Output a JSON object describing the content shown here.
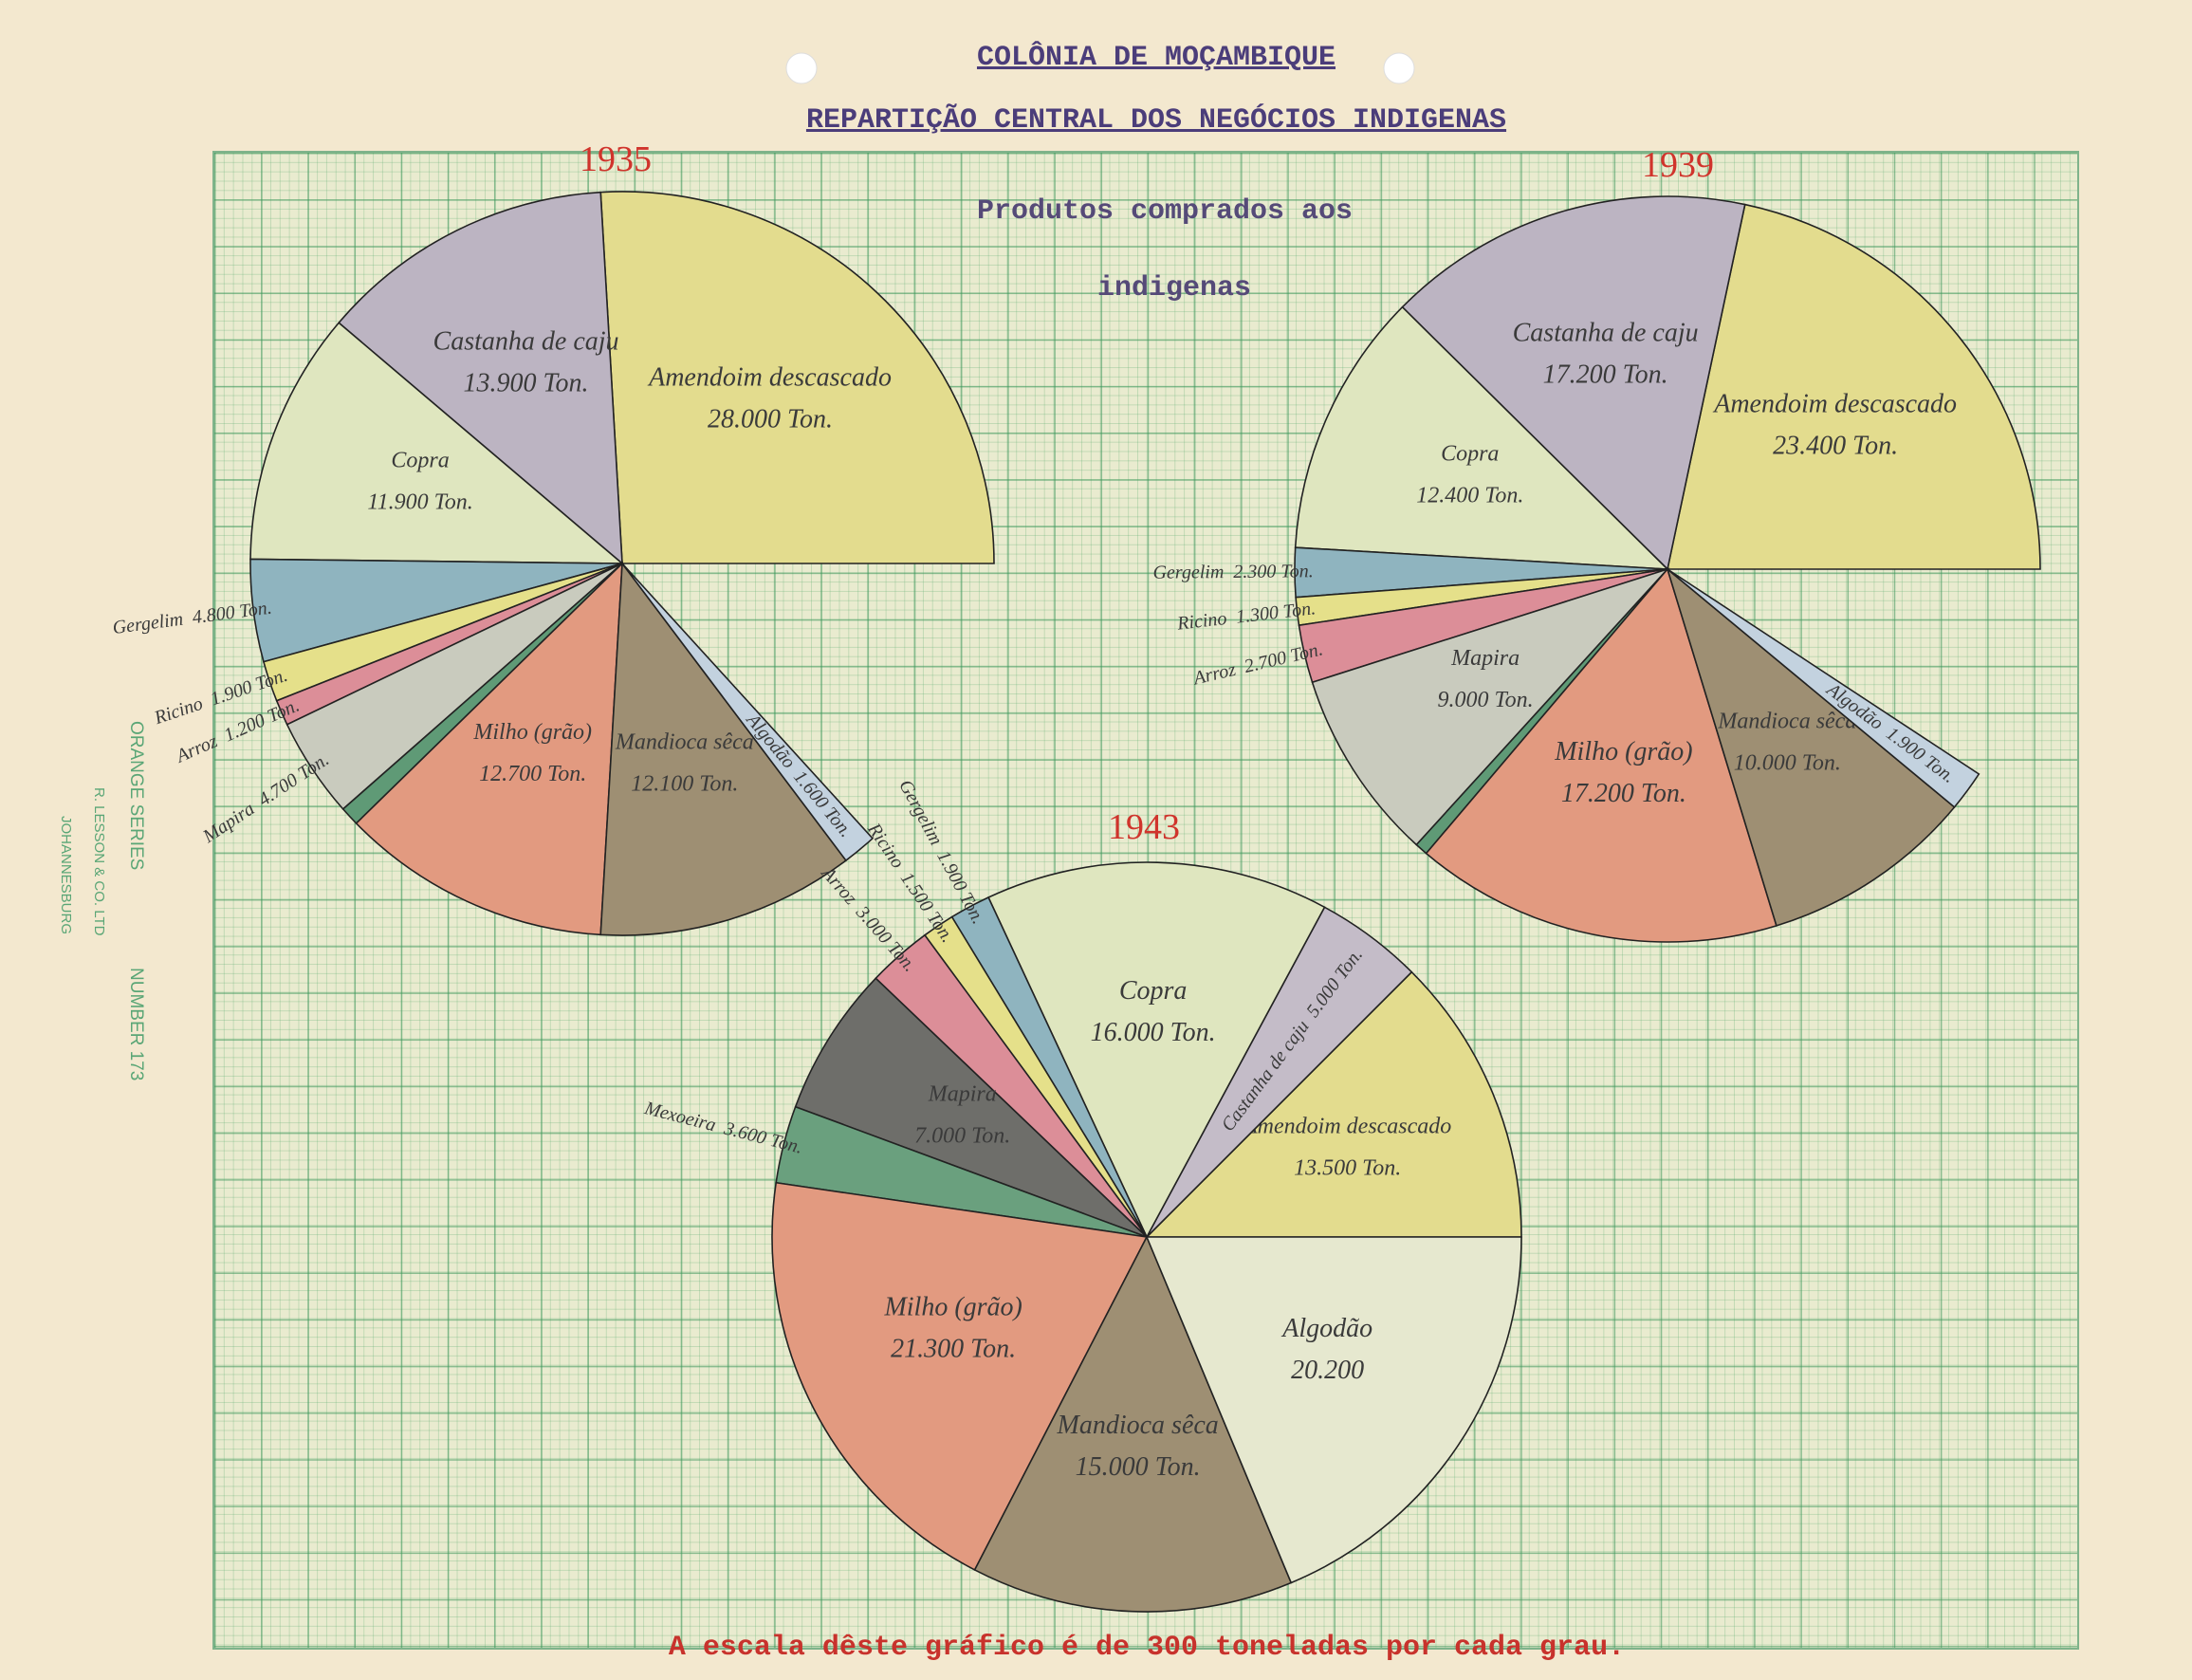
{
  "header": {
    "title": "COLÔNIA DE MOÇAMBIQUE",
    "subtitle": "REPARTIÇÃO CENTRAL DOS NEGÓCIOS INDIGENAS"
  },
  "caption": [
    "Produtos comprados aos",
    "indigenas"
  ],
  "footer": "A escala dêste gráfico é de 300 toneladas por cada grau.",
  "scale_tons_per_degree": 300,
  "paper_mark": {
    "series": "ORANGE SERIES",
    "number": "NUMBER 173",
    "maker": "R. LESSON & CO. LTD",
    "city": "JOHANNESBURG"
  },
  "chart_data": [
    {
      "type": "pie",
      "title": "1935",
      "categories": [
        "Amendoim descascado",
        "Castanha de caju",
        "Copra",
        "Gergelim",
        "Ricino",
        "Arroz",
        "Mapira",
        null,
        "Milho (grão)",
        "Mandioca sêca",
        "Algodão"
      ],
      "values": [
        28000,
        13900,
        11900,
        4800,
        1900,
        1200,
        4700,
        900,
        12700,
        12100,
        1600
      ],
      "value_labels": [
        "28.000 Ton.",
        "13.900 Ton.",
        "11.900 Ton.",
        "4.800 Ton.",
        "1.900 Ton.",
        "1.200 Ton.",
        "4.700 Ton.",
        null,
        "12.700 Ton.",
        "12.100 Ton.",
        "1.600 Ton."
      ],
      "colors": [
        "#e3dc8e",
        "#bcb4c2",
        "#dfe6bf",
        "#8fb4bf",
        "#e5e08a",
        "#dc8e98",
        "#c9cbbe",
        "#5f9a76",
        "#e29a80",
        "#9e8f73",
        "#c3d2df"
      ]
    },
    {
      "type": "pie",
      "title": "1939",
      "categories": [
        "Amendoim descascado",
        "Castanha de caju",
        "Copra",
        "Gergelim",
        "Ricino",
        "Arroz",
        "Mapira",
        null,
        "Milho (grão)",
        "Mandioca sêca",
        "Algodão"
      ],
      "values": [
        23400,
        17200,
        12400,
        2300,
        1300,
        2700,
        9000,
        600,
        17200,
        10000,
        1900
      ],
      "value_labels": [
        "23.400 Ton.",
        "17.200 Ton.",
        "12.400 Ton.",
        "2.300 Ton.",
        "1.300 Ton.",
        "2.700 Ton.",
        "9.000 Ton.",
        null,
        "17.200 Ton.",
        "10.000 Ton.",
        "1.900 Ton."
      ],
      "colors": [
        "#e3dc8e",
        "#bcb4c2",
        "#dfe6bf",
        "#8fb4bf",
        "#e5e08a",
        "#dc8e98",
        "#c9cbbe",
        "#5f9a76",
        "#e29a80",
        "#9e8f73",
        "#c3d2df"
      ]
    },
    {
      "type": "pie",
      "title": "1943",
      "categories": [
        "Amendoim descascado",
        "Castanha de caju",
        "Copra",
        "Gergelim",
        "Ricino",
        "Arroz",
        "Mapira",
        "Mexoeira",
        "Milho (grão)",
        "Mandioca sêca",
        "Algodão"
      ],
      "values": [
        13500,
        5000,
        16000,
        1900,
        1500,
        3000,
        7000,
        3600,
        21300,
        15000,
        20200
      ],
      "value_labels": [
        "13.500 Ton.",
        "5.000 Ton.",
        "16.000 Ton.",
        "1.900 Ton.",
        "1.500 Ton.",
        "3.000 Ton.",
        "7.000 Ton.",
        "3.600 Ton.",
        "21.300 Ton.",
        "15.000 Ton.",
        "20.200"
      ],
      "colors": [
        "#e3dc8e",
        "#c4bcc8",
        "#dfe6bf",
        "#8fb4bf",
        "#e5e08a",
        "#dc8e98",
        "#6e6e6a",
        "#6aa07e",
        "#e29a80",
        "#9e8f73",
        "#e6e8cf"
      ]
    }
  ]
}
